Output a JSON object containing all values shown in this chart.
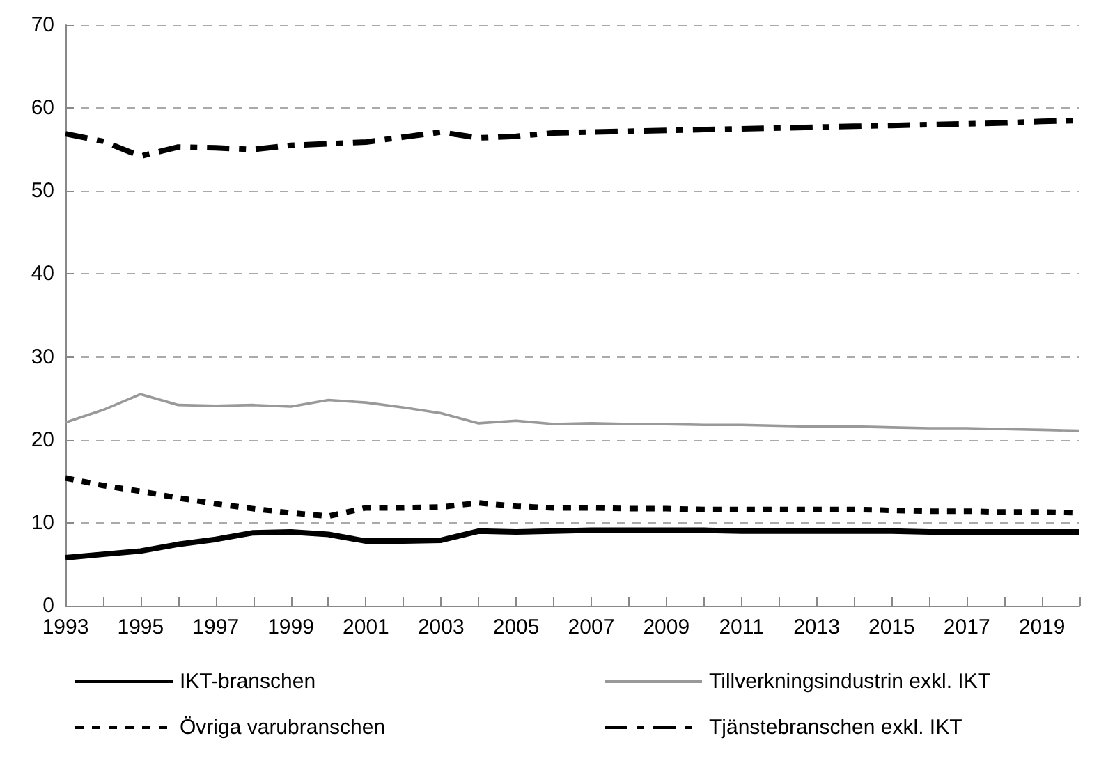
{
  "chart_data": {
    "type": "line",
    "categories": [
      "1993",
      null,
      "1995",
      null,
      "1997",
      null,
      "1999",
      null,
      "2001",
      null,
      "2003",
      null,
      "2005",
      null,
      "2007",
      null,
      "2009",
      null,
      "2011",
      null,
      "2013",
      null,
      "2015",
      null,
      "2017",
      null,
      "2019",
      null
    ],
    "series": [
      {
        "name": "IKT-branschen",
        "color": "#000000",
        "line_style": "solid",
        "values": [
          5.8,
          6.2,
          6.6,
          7.4,
          8.0,
          8.8,
          8.9,
          8.6,
          7.8,
          7.8,
          7.9,
          9.0,
          8.9,
          9.0,
          9.1,
          9.1,
          9.1,
          9.1,
          9.0,
          9.0,
          9.0,
          9.0,
          9.0,
          8.9,
          8.9,
          8.9,
          8.9,
          8.9
        ]
      },
      {
        "name": "Tillverkningsindustrin exkl. IKT",
        "color": "#999999",
        "line_style": "solid",
        "values": [
          22.1,
          23.6,
          25.5,
          24.2,
          24.1,
          24.2,
          24.0,
          24.8,
          24.5,
          23.9,
          23.2,
          22.0,
          22.3,
          21.9,
          22.0,
          21.9,
          21.9,
          21.8,
          21.8,
          21.7,
          21.6,
          21.6,
          21.5,
          21.4,
          21.4,
          21.3,
          21.2,
          21.1
        ]
      },
      {
        "name": "Övriga varubranschen",
        "color": "#000000",
        "line_style": "dotted",
        "values": [
          15.4,
          14.5,
          13.8,
          13.0,
          12.3,
          11.7,
          11.2,
          10.8,
          11.8,
          11.8,
          11.9,
          12.4,
          12.0,
          11.8,
          11.8,
          11.7,
          11.7,
          11.6,
          11.6,
          11.6,
          11.6,
          11.6,
          11.5,
          11.4,
          11.4,
          11.3,
          11.3,
          11.2
        ]
      },
      {
        "name": "Tjänstebranschen exkl. IKT",
        "color": "#000000",
        "line_style": "dashed",
        "values": [
          56.9,
          56.0,
          54.2,
          55.3,
          55.2,
          55.0,
          55.5,
          55.7,
          55.9,
          56.5,
          57.1,
          56.4,
          56.6,
          57.0,
          57.1,
          57.2,
          57.3,
          57.4,
          57.5,
          57.6,
          57.7,
          57.8,
          57.9,
          58.0,
          58.1,
          58.2,
          58.4,
          58.5
        ]
      }
    ],
    "ylim": [
      0,
      70
    ],
    "yticks": [
      0,
      10,
      20,
      30,
      40,
      50,
      60,
      70
    ],
    "grid": "y",
    "legend": "bottom",
    "marker": "none"
  }
}
